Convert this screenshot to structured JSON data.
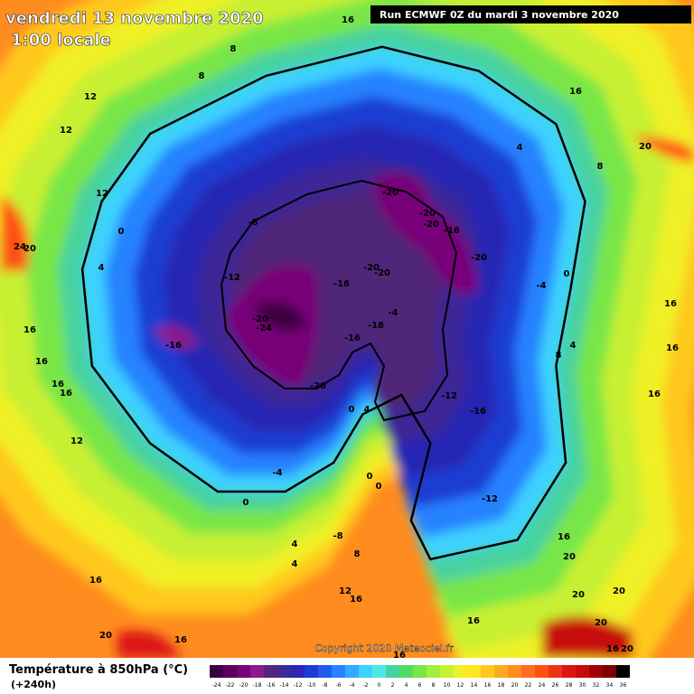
{
  "header": {
    "date": "vendredi 13 novembre 2020",
    "time": "1:00 locale",
    "run": "Run ECMWF 0Z du mardi 3 novembre 2020"
  },
  "footer": {
    "title": "Température à 850hPa (°C)",
    "lead": "(+240h)",
    "copyright": "Copyright 2020 Meteociel.fr"
  },
  "legend": {
    "ticks": [
      -24,
      -22,
      -20,
      -18,
      -16,
      -14,
      -12,
      -10,
      -8,
      -6,
      -4,
      -2,
      0,
      2,
      4,
      6,
      8,
      10,
      12,
      14,
      16,
      18,
      20,
      22,
      24,
      26,
      28,
      30,
      32,
      34,
      36
    ],
    "colors": [
      "#3a0040",
      "#5a005a",
      "#780078",
      "#8c1a8c",
      "#502878",
      "#3c2896",
      "#2828b4",
      "#1e3cd2",
      "#1e5af0",
      "#2882ff",
      "#32aaff",
      "#3cd2ff",
      "#50e6e6",
      "#46d2a0",
      "#50dc64",
      "#78e646",
      "#a0f03c",
      "#c8f032",
      "#f0f028",
      "#ffe61e",
      "#ffc81e",
      "#ffaa1e",
      "#ff8c1e",
      "#ff6e1e",
      "#ff5014",
      "#f03214",
      "#dc1414",
      "#c80a0a",
      "#a00000",
      "#780000",
      "#000000"
    ]
  },
  "map": {
    "contour_labels": [
      16,
      8,
      8,
      12,
      12,
      12,
      20,
      8,
      16,
      4,
      -20,
      -20,
      -20,
      -16,
      -20,
      -20,
      -20,
      -16,
      -8,
      -12,
      -20,
      -24,
      -16,
      -16,
      -18,
      -4,
      -20,
      -12,
      -16,
      -12,
      -4,
      0,
      4,
      8,
      16,
      16,
      16,
      0,
      4,
      16,
      16,
      16,
      16,
      12,
      0,
      4,
      -4,
      0,
      -8,
      8,
      4,
      4,
      12,
      16,
      16,
      20,
      16,
      20,
      20,
      20,
      20,
      16,
      20,
      20,
      24,
      16,
      16,
      16,
      0,
      0
    ]
  }
}
